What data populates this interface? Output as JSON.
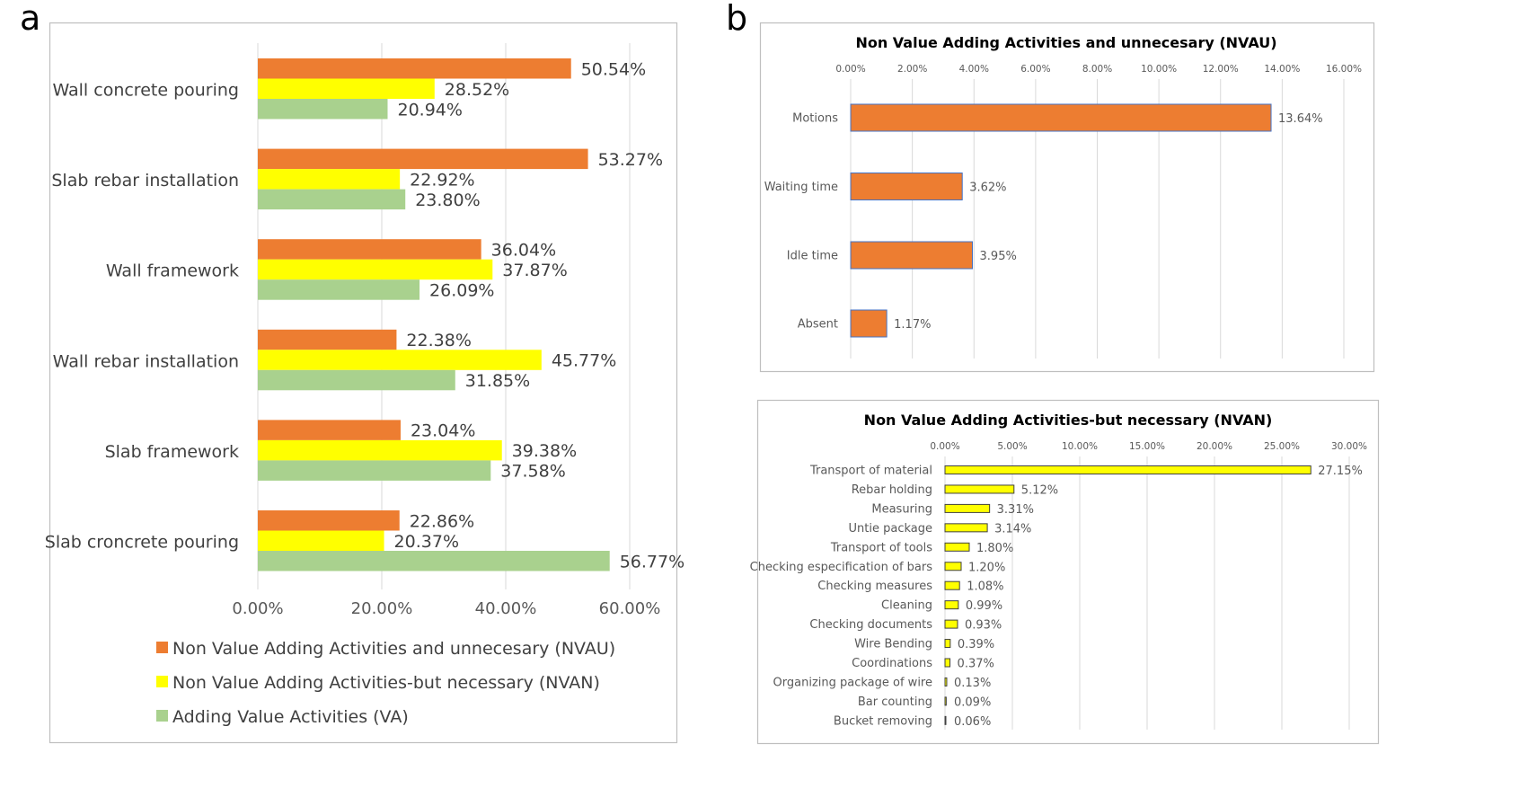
{
  "panel_labels": {
    "a": "a",
    "b": "b"
  },
  "colors": {
    "nvau": "#ED7D31",
    "nvan": "#FFFF00",
    "va": "#A9D18E",
    "grid": "#D9D9D9",
    "frame": "#BFBFBF"
  },
  "chart_data": [
    {
      "id": "chart-a",
      "type": "bar",
      "orientation": "horizontal",
      "title": "",
      "categories": [
        "Wall concrete pouring",
        "Slab rebar installation",
        "Wall framework",
        "Wall rebar installation",
        "Slab framework",
        "Slab croncrete pouring"
      ],
      "series": [
        {
          "name": "Non Value Adding Activities and unnecesary (NVAU)",
          "color_key": "nvau",
          "values": [
            50.54,
            53.27,
            36.04,
            22.38,
            23.04,
            22.86
          ],
          "labels": [
            "50.54%",
            "53.27%",
            "36.04%",
            "22.38%",
            "23.04%",
            "22.86%"
          ]
        },
        {
          "name": "Non Value Adding Activities-but necessary (NVAN)",
          "color_key": "nvan",
          "values": [
            28.52,
            22.92,
            37.87,
            45.77,
            39.38,
            20.37
          ],
          "labels": [
            "28.52%",
            "22.92%",
            "37.87%",
            "45.77%",
            "39.38%",
            "20.37%"
          ]
        },
        {
          "name": "Adding Value Activities (VA)",
          "color_key": "va",
          "values": [
            20.94,
            23.8,
            26.09,
            31.85,
            37.58,
            56.77
          ],
          "labels": [
            "20.94%",
            "23.80%",
            "26.09%",
            "31.85%",
            "37.58%",
            "56.77%"
          ]
        }
      ],
      "xlim": [
        0,
        60
      ],
      "xticks": [
        0,
        20,
        40,
        60
      ],
      "xtick_labels": [
        "0.00%",
        "20.00%",
        "40.00%",
        "60.00%"
      ],
      "legend_position": "bottom"
    },
    {
      "id": "chart-b1",
      "type": "bar",
      "orientation": "horizontal",
      "title": "Non Value Adding Activities and unnecesary (NVAU)",
      "categories": [
        "Motions",
        "Waiting time",
        "Idle time",
        "Absent"
      ],
      "values": [
        13.64,
        3.62,
        3.95,
        1.17
      ],
      "labels": [
        "13.64%",
        "3.62%",
        "3.95%",
        "1.17%"
      ],
      "color_key": "nvau",
      "xlim": [
        0,
        16
      ],
      "xticks": [
        0,
        2,
        4,
        6,
        8,
        10,
        12,
        14,
        16
      ],
      "xtick_labels": [
        "0.00%",
        "2.00%",
        "4.00%",
        "6.00%",
        "8.00%",
        "10.00%",
        "12.00%",
        "14.00%",
        "16.00%"
      ],
      "xaxis_position": "top"
    },
    {
      "id": "chart-b2",
      "type": "bar",
      "orientation": "horizontal",
      "title": "Non Value Adding Activities-but  necessary (NVAN)",
      "categories": [
        "Transport of material",
        "Rebar holding",
        "Measuring",
        "Untie package",
        "Transport of tools",
        "Checking especification of bars",
        "Checking measures",
        "Cleaning",
        "Checking documents",
        "Wire Bending",
        "Coordinations",
        "Organizing package of wire",
        "Bar counting",
        "Bucket removing"
      ],
      "values": [
        27.15,
        5.12,
        3.31,
        3.14,
        1.8,
        1.2,
        1.08,
        0.99,
        0.93,
        0.39,
        0.37,
        0.13,
        0.09,
        0.06
      ],
      "labels": [
        "27.15%",
        "5.12%",
        "3.31%",
        "3.14%",
        "1.80%",
        "1.20%",
        "1.08%",
        "0.99%",
        "0.93%",
        "0.39%",
        "0.37%",
        "0.13%",
        "0.09%",
        "0.06%"
      ],
      "color_key": "nvan",
      "xlim": [
        0,
        30
      ],
      "xticks": [
        0,
        5,
        10,
        15,
        20,
        25,
        30
      ],
      "xtick_labels": [
        "0.00%",
        "5.00%",
        "10.00%",
        "15.00%",
        "20.00%",
        "25.00%",
        "30.00%"
      ],
      "xaxis_position": "top"
    }
  ]
}
